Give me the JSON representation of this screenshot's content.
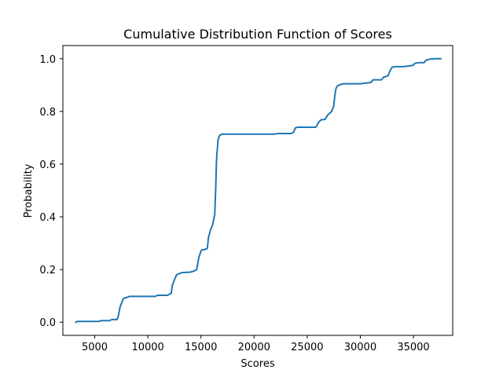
{
  "chart_data": {
    "type": "line",
    "title": "Cumulative Distribution Function of Scores",
    "xlabel": "Scores",
    "ylabel": "Probability",
    "xlim": [
      2000,
      38700
    ],
    "ylim": [
      -0.05,
      1.05
    ],
    "x_ticks": [
      5000,
      10000,
      15000,
      20000,
      25000,
      30000,
      35000
    ],
    "x_tick_labels": [
      "5000",
      "10000",
      "15000",
      "20000",
      "25000",
      "30000",
      "35000"
    ],
    "y_ticks": [
      0.0,
      0.2,
      0.4,
      0.6,
      0.8,
      1.0
    ],
    "y_tick_labels": [
      "0.0",
      "0.2",
      "0.4",
      "0.6",
      "0.8",
      "1.0"
    ],
    "grid": false,
    "series": [
      {
        "color": "#1f77b4",
        "x": [
          3200,
          3400,
          5400,
          5600,
          6400,
          6600,
          7100,
          7200,
          7400,
          7700,
          8100,
          8300,
          10700,
          10900,
          11800,
          12000,
          12200,
          12300,
          12500,
          12700,
          13000,
          13200,
          14000,
          14400,
          14600,
          14800,
          15000,
          15100,
          15300,
          15600,
          15700,
          15900,
          16100,
          16200,
          16300,
          16400,
          16450,
          16500,
          16550,
          16600,
          16700,
          16800,
          17000,
          17200,
          22000,
          22200,
          23500,
          23700,
          23900,
          24100,
          25800,
          25900,
          26100,
          26300,
          26700,
          26900,
          27300,
          27500,
          27600,
          27700,
          27800,
          28000,
          28400,
          29000,
          30000,
          31000,
          31100,
          31200,
          32000,
          32200,
          32600,
          32800,
          33000,
          33300,
          34000,
          34500,
          35000,
          35100,
          35500,
          36000,
          36200,
          36500,
          37000,
          37600
        ],
        "y": [
          0.0,
          0.003,
          0.003,
          0.006,
          0.006,
          0.01,
          0.01,
          0.02,
          0.06,
          0.09,
          0.095,
          0.098,
          0.098,
          0.102,
          0.102,
          0.105,
          0.11,
          0.14,
          0.16,
          0.18,
          0.185,
          0.188,
          0.19,
          0.195,
          0.2,
          0.245,
          0.27,
          0.275,
          0.275,
          0.28,
          0.32,
          0.35,
          0.37,
          0.39,
          0.41,
          0.52,
          0.6,
          0.64,
          0.66,
          0.69,
          0.705,
          0.71,
          0.714,
          0.714,
          0.714,
          0.716,
          0.716,
          0.72,
          0.738,
          0.74,
          0.74,
          0.745,
          0.76,
          0.768,
          0.77,
          0.785,
          0.8,
          0.82,
          0.86,
          0.885,
          0.895,
          0.9,
          0.905,
          0.905,
          0.905,
          0.91,
          0.915,
          0.92,
          0.92,
          0.93,
          0.935,
          0.955,
          0.968,
          0.97,
          0.97,
          0.972,
          0.975,
          0.982,
          0.985,
          0.985,
          0.995,
          0.998,
          1.0,
          1.0
        ]
      }
    ]
  }
}
